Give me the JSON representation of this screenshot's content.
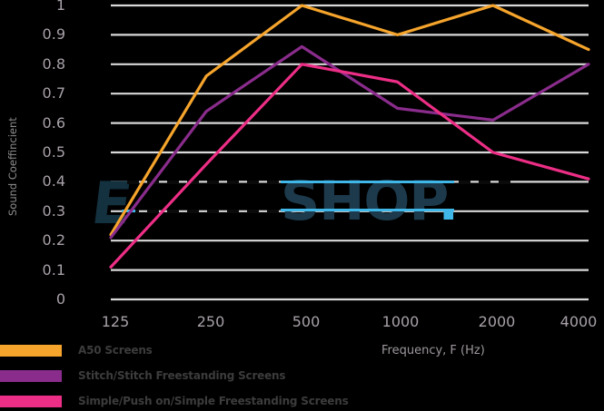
{
  "y_axis": {
    "title": "Sound Coeffincient"
  },
  "x_axis": {
    "title": "Frequency, F (Hz)"
  },
  "watermark": {
    "prefix_letter": "E",
    "text": "SHOP",
    "period": "."
  },
  "legend": {
    "items": [
      {
        "label": "A50 Screens"
      },
      {
        "label": "Stitch/Stitch Freestanding Screens"
      },
      {
        "label": "Simple/Push on/Simple Freestanding Screens"
      }
    ]
  },
  "chart_data": {
    "type": "line",
    "title": "",
    "xlabel": "Frequency, F (Hz)",
    "ylabel": "Sound Coeffincient",
    "categories": [
      "125",
      "250",
      "500",
      "1000",
      "2000",
      "4000"
    ],
    "x_scale": "log-equal-spacing",
    "ylim": [
      0,
      1
    ],
    "y_ticks": [
      0,
      0.1,
      0.2,
      0.3,
      0.4,
      0.5,
      0.6,
      0.7,
      0.8,
      0.9,
      1
    ],
    "grid": "horizontal",
    "grid_color": "#D9D9D9",
    "background_color": "#000000",
    "legend_position": "bottom-left",
    "series": [
      {
        "name": "A50 Screens",
        "color": "#F5A42C",
        "values": [
          0.22,
          0.76,
          1.0,
          0.9,
          1.0,
          0.85
        ]
      },
      {
        "name": "Stitch/Stitch Freestanding Screens",
        "color": "#8A2C8C",
        "values": [
          0.21,
          0.64,
          0.86,
          0.65,
          0.61,
          0.8
        ]
      },
      {
        "name": "Simple/Push on/Simple Freestanding Screens",
        "color": "#ED2E86",
        "values": [
          0.11,
          0.46,
          0.8,
          0.74,
          0.5,
          0.41
        ]
      }
    ]
  }
}
